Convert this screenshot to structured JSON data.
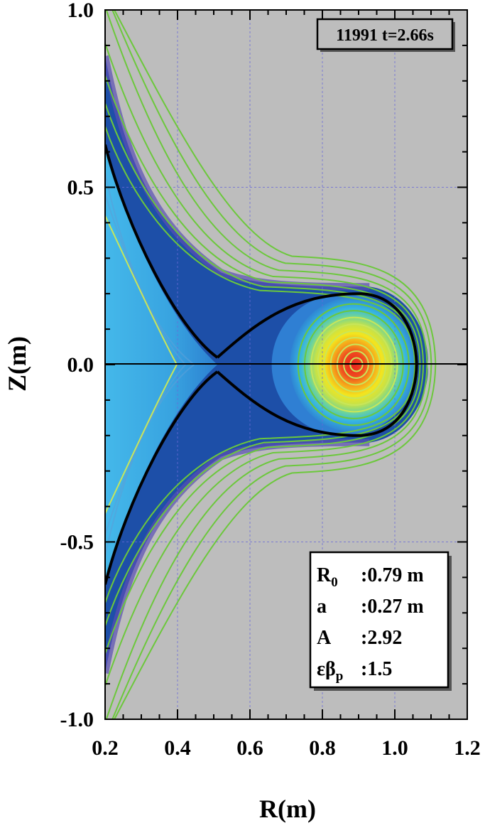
{
  "chart_data": {
    "type": "heatmap",
    "title": "",
    "xlabel": "R(m)",
    "ylabel": "Z(m)",
    "xlim": [
      0.2,
      1.2
    ],
    "ylim": [
      -1.0,
      1.0
    ],
    "xticks": [
      "0.2",
      "0.4",
      "0.6",
      "0.8",
      "1.0",
      "1.2"
    ],
    "yticks": [
      "1.0",
      "0.5",
      "0.0",
      "-0.5",
      "-1.0"
    ],
    "grid": true,
    "shot_label": "11991 t=2.66s",
    "magnetic_axis": {
      "R": 0.9,
      "Z": 0.0
    },
    "x_point": {
      "R": 0.51,
      "Z": 0.0
    },
    "parameters": [
      {
        "symbol": "R",
        "sub": "0",
        "value": ":0.79 m"
      },
      {
        "symbol": " a ",
        "sub": "",
        "value": ":0.27 m"
      },
      {
        "symbol": "A ",
        "sub": "",
        "value": ":2.92"
      },
      {
        "symbol": "εβ",
        "sub": "p",
        "value": ":1.5"
      }
    ],
    "colors": {
      "background": "#bdbdbd",
      "flux_contours": "#6cc83c",
      "inner_contours": "#c8e65a",
      "separatrix": "#000000",
      "core_max": "#e8231e",
      "private_region": "#39a9e0",
      "edge_region": "#1d4fa8"
    }
  }
}
